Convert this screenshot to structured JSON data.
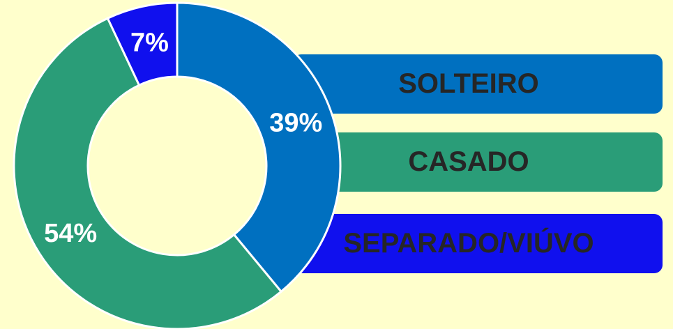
{
  "chart_data": {
    "type": "pie",
    "donut": true,
    "categories": [
      "SOLTEIRO",
      "CASADO",
      "SEPARADO/VIÚVO"
    ],
    "values": [
      39,
      54,
      7
    ],
    "value_labels": [
      "39%",
      "54%",
      "7%"
    ],
    "colors": [
      "#0070c0",
      "#2a9d78",
      "#1010ee"
    ]
  }
}
